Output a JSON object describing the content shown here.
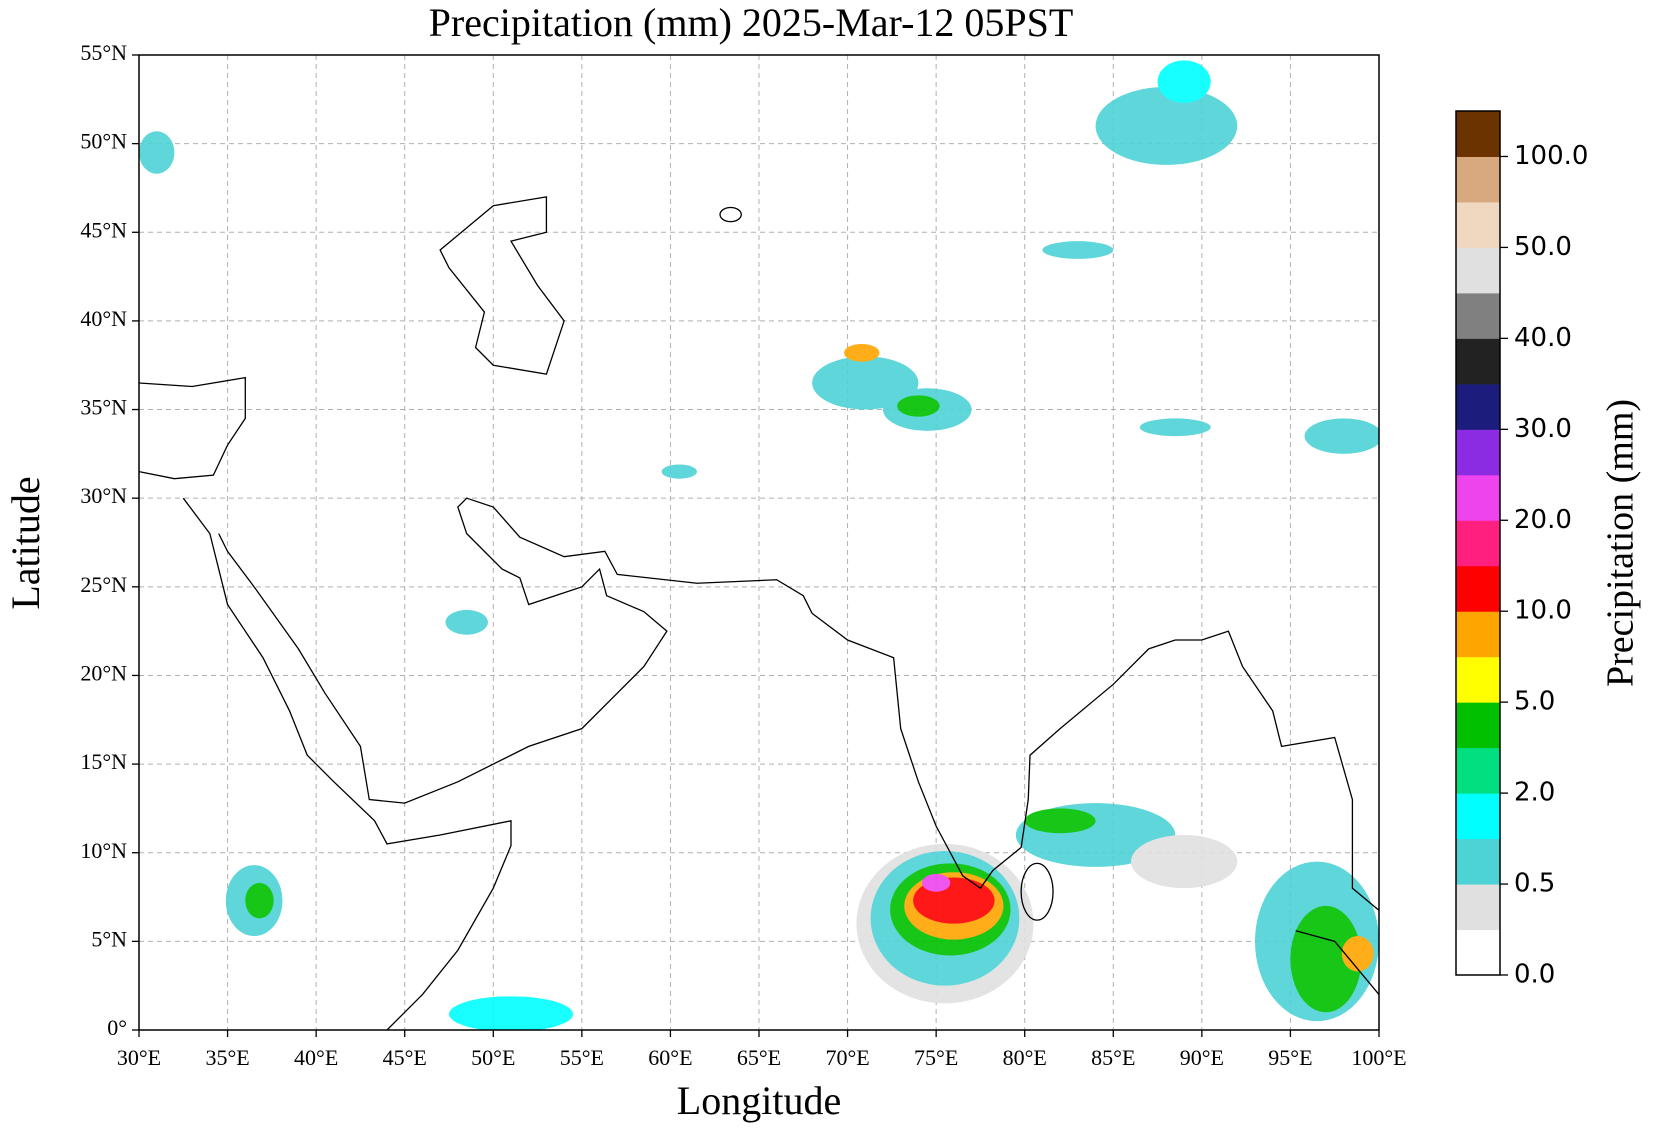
{
  "chart_data": {
    "type": "map",
    "title": "Precipitation (mm)  2025-Mar-12 05PST",
    "x_label": "Longitude",
    "y_label": "Latitude",
    "xlim": [
      30,
      100
    ],
    "ylim": [
      0,
      55
    ],
    "xticks": [
      {
        "value": 30,
        "label": "30°E"
      },
      {
        "value": 35,
        "label": "35°E"
      },
      {
        "value": 40,
        "label": "40°E"
      },
      {
        "value": 45,
        "label": "45°E"
      },
      {
        "value": 50,
        "label": "50°E"
      },
      {
        "value": 55,
        "label": "55°E"
      },
      {
        "value": 60,
        "label": "60°E"
      },
      {
        "value": 65,
        "label": "65°E"
      },
      {
        "value": 70,
        "label": "70°E"
      },
      {
        "value": 75,
        "label": "75°E"
      },
      {
        "value": 80,
        "label": "80°E"
      },
      {
        "value": 85,
        "label": "85°E"
      },
      {
        "value": 90,
        "label": "90°E"
      },
      {
        "value": 95,
        "label": "95°E"
      },
      {
        "value": 100,
        "label": "100°E"
      }
    ],
    "yticks": [
      {
        "value": 0,
        "label": "0°"
      },
      {
        "value": 5,
        "label": "5°N"
      },
      {
        "value": 10,
        "label": "10°N"
      },
      {
        "value": 15,
        "label": "15°N"
      },
      {
        "value": 20,
        "label": "20°N"
      },
      {
        "value": 25,
        "label": "25°N"
      },
      {
        "value": 30,
        "label": "30°N"
      },
      {
        "value": 35,
        "label": "35°N"
      },
      {
        "value": 40,
        "label": "40°N"
      },
      {
        "value": 45,
        "label": "45°N"
      },
      {
        "value": 50,
        "label": "50°N"
      },
      {
        "value": 55,
        "label": "55°N"
      }
    ],
    "grid": true,
    "colorbar": {
      "label": "Precipitation (mm)",
      "ticks": [
        {
          "value": 0,
          "label": "0.0"
        },
        {
          "value": 0.5,
          "label": "0.5"
        },
        {
          "value": 2,
          "label": "2.0"
        },
        {
          "value": 5,
          "label": "5.0"
        },
        {
          "value": 10,
          "label": "10.0"
        },
        {
          "value": 20,
          "label": "20.0"
        },
        {
          "value": 30,
          "label": "30.0"
        },
        {
          "value": 40,
          "label": "40.0"
        },
        {
          "value": 50,
          "label": "50.0"
        },
        {
          "value": 100,
          "label": "100.0"
        }
      ],
      "colors": [
        "#ffffff",
        "#e0e0e0",
        "#4dd2d6",
        "#00ffff",
        "#00e080",
        "#00c000",
        "#ffff00",
        "#ffa500",
        "#ff0000",
        "#ff1f7f",
        "#ee44ee",
        "#8b2be2",
        "#1c1c7c",
        "#222222",
        "#808080",
        "#e0e0e0",
        "#f0d7c0",
        "#d8a87e",
        "#6b3300"
      ]
    }
  }
}
